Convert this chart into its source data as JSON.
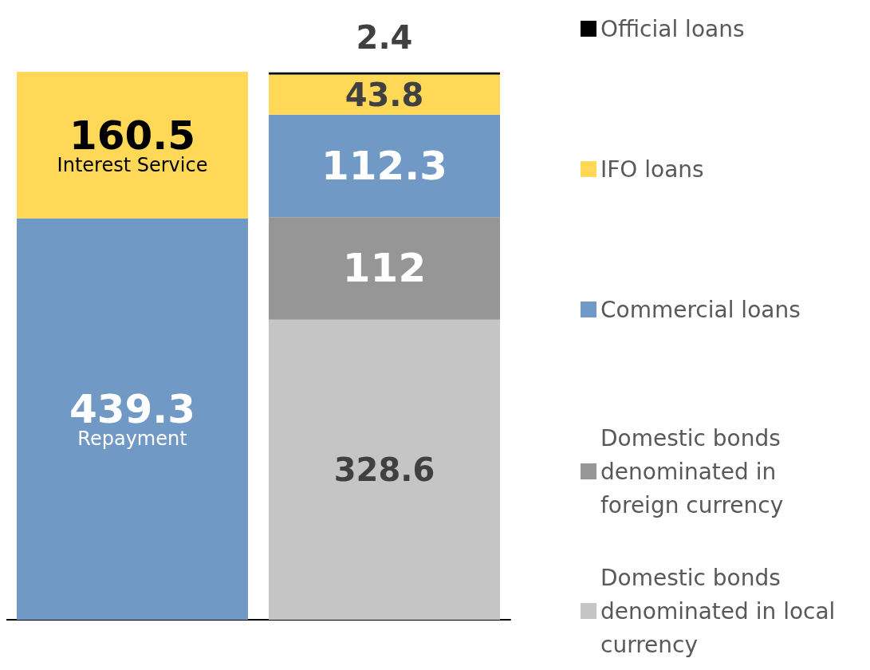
{
  "chart_data": {
    "type": "bar",
    "stacked": true,
    "categories": [
      null,
      null
    ],
    "data_labels": true,
    "legend": "right",
    "series": [
      {
        "name": "Repayment",
        "color": "#7099c6",
        "values": [
          439.3,
          null
        ]
      },
      {
        "name": "Interest Service",
        "color": "#ffd857",
        "values": [
          160.5,
          null
        ]
      },
      {
        "name": "Domestic bonds denominated in local currency",
        "color": "#c5c5c5",
        "values": [
          null,
          328.6
        ]
      },
      {
        "name": "Domestic bonds denominated in foreign currency",
        "color": "#969696",
        "values": [
          null,
          112
        ]
      },
      {
        "name": "Commercial loans",
        "color": "#7099c6",
        "values": [
          null,
          112.3
        ]
      },
      {
        "name": "IFO loans",
        "color": "#ffd857",
        "values": [
          null,
          43.8
        ]
      },
      {
        "name": "Official loans",
        "color": "#000000",
        "values": [
          null,
          2.4
        ]
      }
    ]
  }
}
